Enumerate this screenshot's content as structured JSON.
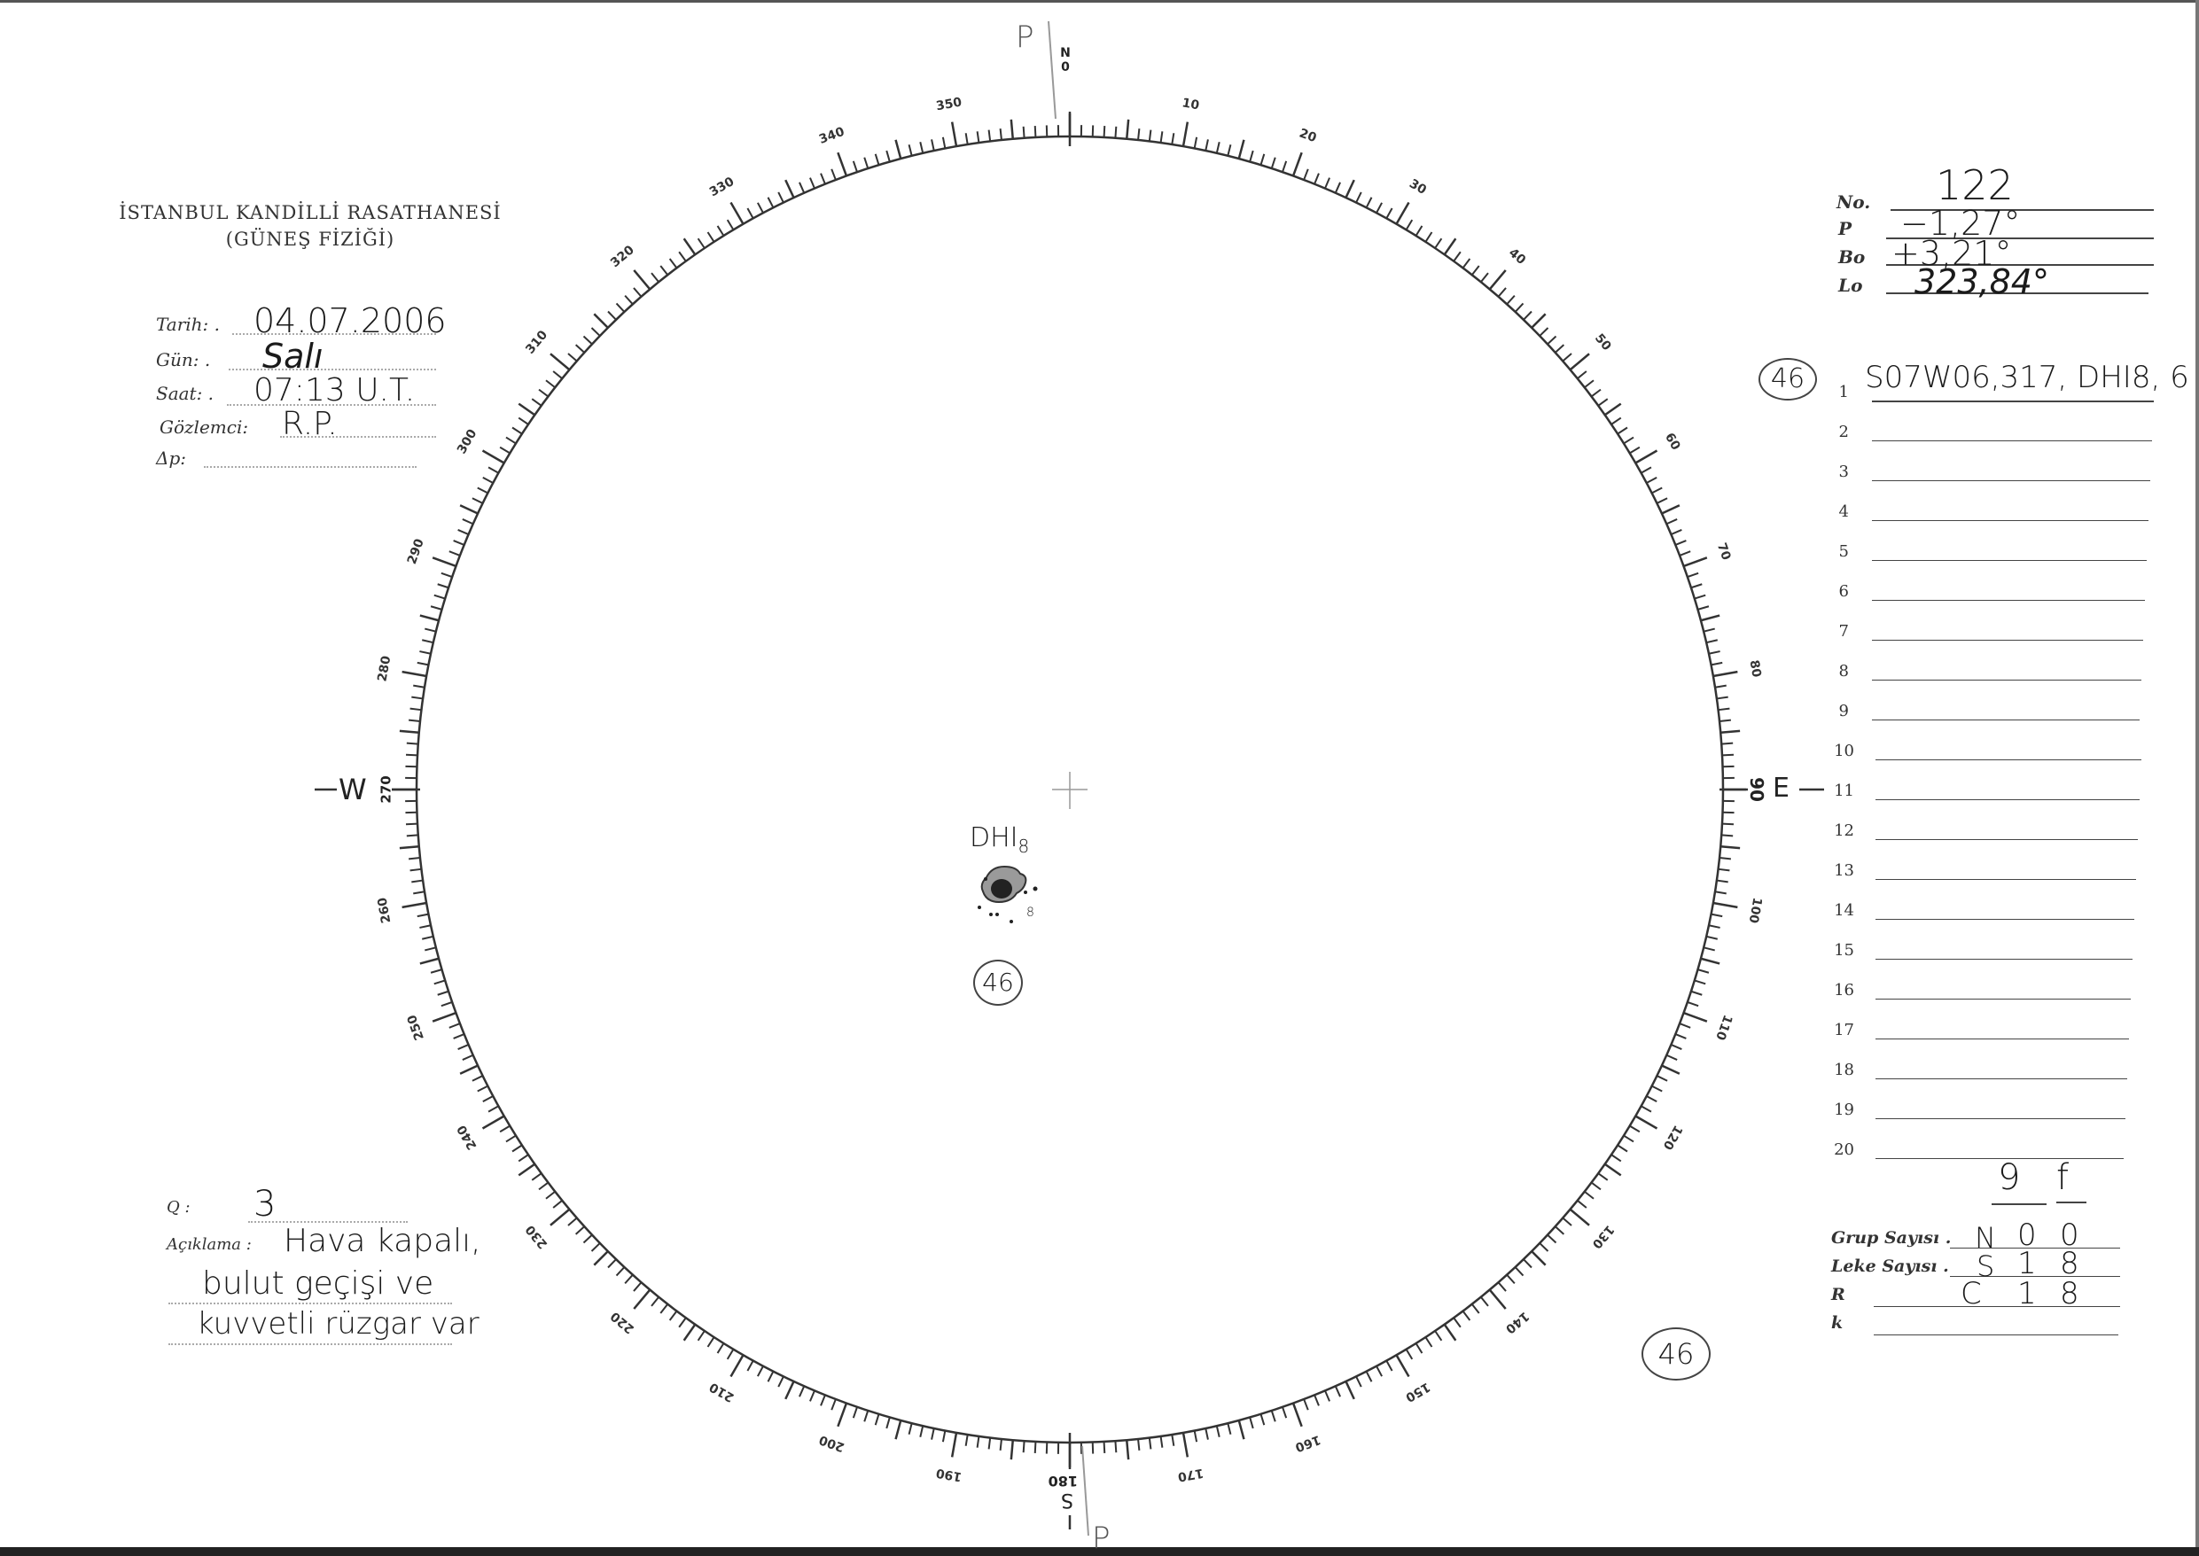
{
  "header": {
    "institution": "İSTANBUL KANDİLLİ RASATHANESİ",
    "department": "(GÜNEŞ FİZİĞİ)"
  },
  "observation": {
    "date_label": "Tarih: .",
    "date_value": "04.07.2006",
    "day_label": "Gün: .",
    "day_value": "Salı",
    "time_label": "Saat: .",
    "time_value": "07:13 U.T.",
    "observer_label": "Gözlemci:",
    "observer_value": "R.P.",
    "delta_p_label": "Δp:",
    "delta_p_value": ""
  },
  "ephemeris": {
    "no_label": "No.",
    "no_value": "122",
    "p_label": "P",
    "p_value": "−1,27°",
    "bo_label": "Bo",
    "bo_value": "+3,21°",
    "lo_label": "Lo",
    "lo_value": "323,84°"
  },
  "groups_list": {
    "numbers": [
      "1",
      "2",
      "3",
      "4",
      "5",
      "6",
      "7",
      "8",
      "9",
      "10",
      "11",
      "12",
      "13",
      "14",
      "15",
      "16",
      "17",
      "18",
      "19",
      "20"
    ],
    "entries": [
      "S07W06,317, DHI8, 6",
      "",
      "",
      "",
      "",
      "",
      "",
      "",
      "",
      "",
      "",
      "",
      "",
      "",
      "",
      "",
      "",
      "",
      "",
      ""
    ],
    "first_group_number": "46"
  },
  "counts": {
    "col_g": "9",
    "col_f": "f",
    "group_label": "Grup Sayısı .",
    "group_hemisphere": "N",
    "group_g": "0",
    "group_f": "0",
    "spot_label": "Leke Sayısı .",
    "spot_hemisphere": "S",
    "spot_g": "1",
    "spot_f": "8",
    "r_label": "R",
    "r_hemisphere": "C",
    "r_g": "1",
    "r_f": "8",
    "k_label": "k",
    "k_value": ""
  },
  "quality": {
    "q_label": "Q :",
    "q_value": "3",
    "remarks_label": "Açıklama :",
    "remarks_lines": [
      "Hava kapalı,",
      "bulut geçişi ve",
      "kuvvetli rüzgar var"
    ]
  },
  "disk": {
    "cardinals": {
      "north": "N",
      "south": "S",
      "east": "E",
      "west": "W"
    },
    "p_axis_mark": "P",
    "scale_labels": [
      "0",
      "10",
      "20",
      "30",
      "40",
      "50",
      "60",
      "70",
      "80",
      "90",
      "100",
      "110",
      "120",
      "130",
      "140",
      "150",
      "160",
      "170",
      "180",
      "190",
      "200",
      "210",
      "220",
      "230",
      "240",
      "250",
      "260",
      "270",
      "280",
      "290",
      "300",
      "310",
      "320",
      "330",
      "340",
      "350"
    ],
    "sunspot_group": {
      "classification": "DHI",
      "spot_count": "8",
      "group_number": "46",
      "small_label": "8"
    },
    "corner_group_number": "46"
  }
}
